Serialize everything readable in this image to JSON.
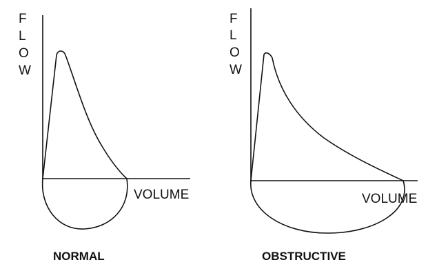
{
  "panels": [
    {
      "title": "NORMAL",
      "y_axis_label": "FLOW",
      "x_axis_label": "VOLUME"
    },
    {
      "title": "OBSTRUCTIVE",
      "y_axis_label": "FLOW",
      "x_axis_label": "VOLUME"
    }
  ]
}
